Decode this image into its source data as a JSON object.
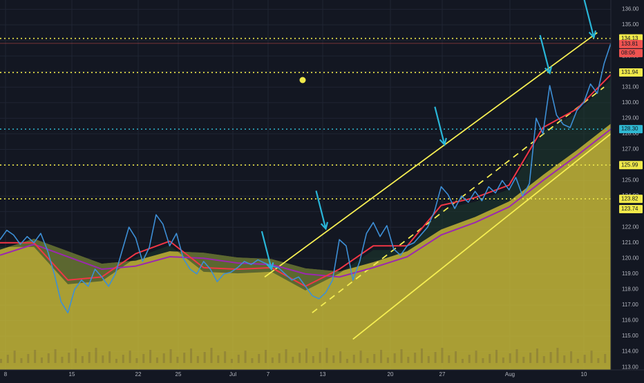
{
  "chart_data": {
    "type": "line",
    "colors": {
      "background": "#131722",
      "grid": "#1f2433",
      "price": "#3d8fd6",
      "ema_fast": "#f23645",
      "ema_slow": "#9c27b0",
      "cloud": "#d4c43a",
      "level_line": "#f0e94a",
      "cyan_level": "#2fb8d2",
      "arrow": "#29b6d8",
      "current_price": "#ef5350",
      "trendline": "#f5ee52"
    },
    "ylim": [
      113.0,
      136.0
    ],
    "y_ticks": [
      "113.00",
      "114.00",
      "115.00",
      "116.00",
      "117.00",
      "118.00",
      "119.00",
      "120.00",
      "121.00",
      "122.00",
      "123.00",
      "124.00",
      "125.00",
      "126.00",
      "127.00",
      "128.00",
      "129.00",
      "130.00",
      "131.00",
      "132.00",
      "133.00",
      "134.00",
      "135.00",
      "136.00"
    ],
    "x_ticks": [
      "8",
      "15",
      "22",
      "25",
      "Jul",
      "7",
      "13",
      "20",
      "27",
      "Aug",
      "10"
    ],
    "horizontal_levels": [
      {
        "label": "134.13",
        "value": 134.13
      },
      {
        "label": "131.94",
        "value": 131.94
      },
      {
        "label": "125.99",
        "value": 125.99
      },
      {
        "label": "123.82",
        "value": 123.82
      }
    ],
    "cyan_level": {
      "label": "128.30",
      "value": 128.3
    },
    "current_price": {
      "label": "133.81",
      "value": 133.81,
      "countdown": "08:06"
    },
    "extra_label": {
      "label": "123.74",
      "value": 123.74
    },
    "series": [
      {
        "name": "",
        "x": [
          0,
          2,
          4,
          6,
          8,
          10,
          12,
          14,
          16,
          18,
          20,
          22,
          24,
          26,
          28,
          30,
          32,
          34,
          36,
          38,
          40,
          42,
          44,
          46,
          48,
          50,
          52,
          54,
          56,
          58,
          60,
          62,
          64,
          66,
          68,
          70,
          72,
          74,
          76,
          78,
          80,
          82,
          84,
          86,
          88,
          90,
          92,
          94,
          96,
          98,
          100,
          102,
          104,
          106,
          108,
          110,
          112,
          114,
          116,
          118,
          120,
          122,
          124,
          126,
          128,
          130,
          132,
          134,
          136,
          138,
          140,
          142,
          144,
          146,
          148,
          150,
          152,
          154,
          156,
          158,
          160,
          162,
          164,
          166,
          168,
          170,
          172,
          174,
          176,
          178,
          180
        ],
        "values": [
          121.2,
          121.8,
          121.5,
          120.9,
          121.4,
          121.0,
          121.6,
          120.5,
          119.0,
          117.2,
          116.5,
          118.0,
          118.6,
          118.2,
          119.3,
          118.8,
          118.2,
          119.0,
          120.5,
          122.0,
          121.3,
          119.8,
          120.7,
          122.8,
          122.2,
          120.8,
          121.6,
          120.0,
          119.3,
          119.0,
          119.8,
          119.3,
          118.5,
          119.0,
          119.1,
          119.4,
          119.8,
          119.6,
          119.9,
          119.7,
          119.5,
          119.4,
          119.0,
          118.6,
          118.8,
          118.2,
          117.6,
          117.4,
          117.8,
          118.6,
          121.2,
          120.8,
          118.6,
          119.8,
          121.6,
          122.3,
          121.4,
          122.1,
          120.6,
          120.2,
          120.8,
          121.0,
          121.5,
          122.0,
          123.0,
          124.6,
          124.1,
          123.2,
          124.0,
          123.6,
          124.3,
          123.7,
          124.6,
          124.2,
          125.0,
          124.4,
          125.2,
          124.0,
          124.8,
          129.0,
          128.0,
          131.1,
          129.2,
          128.6,
          128.4,
          129.5,
          130.0,
          131.2,
          130.6,
          132.5,
          133.81
        ]
      },
      {
        "name": "",
        "x": [
          0,
          10,
          20,
          30,
          40,
          50,
          60,
          70,
          80,
          90,
          100,
          110,
          120,
          130,
          140,
          150,
          160,
          170,
          180
        ],
        "values": [
          121.0,
          121.0,
          118.6,
          118.8,
          120.3,
          121.1,
          119.4,
          119.3,
          119.4,
          118.2,
          119.3,
          120.8,
          120.8,
          123.4,
          123.9,
          124.7,
          128.4,
          129.6,
          131.8
        ]
      },
      {
        "name": "",
        "x": [
          0,
          10,
          20,
          30,
          40,
          50,
          60,
          70,
          80,
          90,
          100,
          110,
          120,
          130,
          140,
          150,
          160,
          170,
          180
        ],
        "values": [
          120.2,
          120.9,
          120.1,
          119.3,
          119.5,
          120.1,
          120.0,
          119.7,
          119.6,
          119.0,
          118.8,
          119.4,
          120.1,
          121.5,
          122.3,
          123.3,
          125.0,
          126.6,
          128.3
        ]
      }
    ],
    "arrows": [
      {
        "x": 80,
        "y": 119.3
      },
      {
        "x": 96,
        "y": 121.9
      },
      {
        "x": 131,
        "y": 127.3
      },
      {
        "x": 162,
        "y": 131.9
      },
      {
        "x": 175,
        "y": 134.2
      }
    ],
    "trendlines": [
      {
        "x1": 78,
        "y1": 118.8,
        "x2": 176,
        "y2": 134.5,
        "dashed": false
      },
      {
        "x1": 104,
        "y1": 114.8,
        "x2": 180,
        "y2": 128.0,
        "dashed": false
      },
      {
        "x1": 92,
        "y1": 116.5,
        "x2": 178,
        "y2": 131.0,
        "dashed": true
      }
    ]
  }
}
